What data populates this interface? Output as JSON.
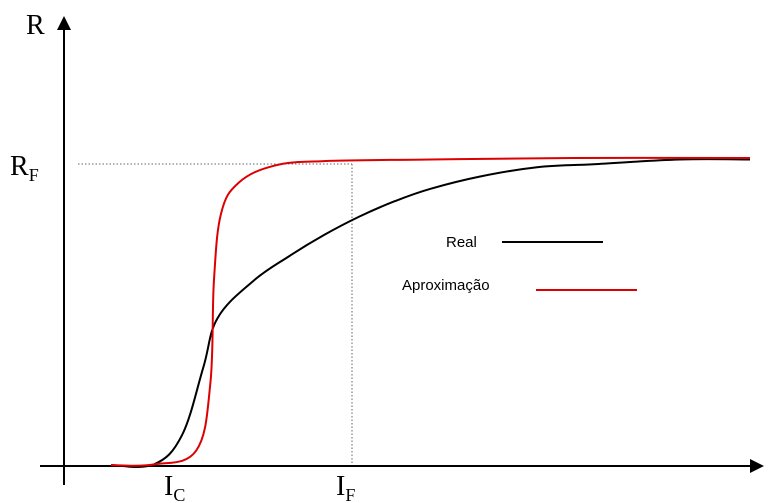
{
  "chart_data": {
    "type": "line",
    "title": "",
    "ylabel": "R",
    "xlabel": "",
    "y_ref_label": {
      "main": "R",
      "sub": "F"
    },
    "x_marks": [
      {
        "main": "I",
        "sub": "C"
      },
      {
        "main": "I",
        "sub": "F"
      }
    ],
    "legend": {
      "placement": "right-center"
    },
    "series": [
      {
        "name": "Real",
        "color": "#000000",
        "points": [
          [
            0.1,
            0.003
          ],
          [
            0.16,
            0.005
          ],
          [
            0.2,
            0.1
          ],
          [
            0.23,
            0.32
          ],
          [
            0.25,
            0.48
          ],
          [
            0.3,
            0.6
          ],
          [
            0.35,
            0.68
          ],
          [
            0.4,
            0.75
          ],
          [
            0.45,
            0.81
          ],
          [
            0.5,
            0.86
          ],
          [
            0.55,
            0.9
          ],
          [
            0.62,
            0.94
          ],
          [
            0.7,
            0.97
          ],
          [
            0.78,
            0.98
          ],
          [
            0.9,
            0.995
          ],
          [
            1.0,
            0.995
          ]
        ]
      },
      {
        "name": "Aproximação",
        "color": "#dd0000",
        "points": [
          [
            0.1,
            0.003
          ],
          [
            0.16,
            0.005
          ],
          [
            0.22,
            0.05
          ],
          [
            0.24,
            0.27
          ],
          [
            0.245,
            0.6
          ],
          [
            0.255,
            0.82
          ],
          [
            0.28,
            0.92
          ],
          [
            0.33,
            0.975
          ],
          [
            0.4,
            0.99
          ],
          [
            0.55,
            0.995
          ],
          [
            0.75,
            1.0
          ],
          [
            1.0,
            1.0
          ]
        ]
      }
    ],
    "reference_lines": {
      "horizontal_at": "R_F",
      "vertical_at": "I_F",
      "style": "dotted"
    }
  }
}
